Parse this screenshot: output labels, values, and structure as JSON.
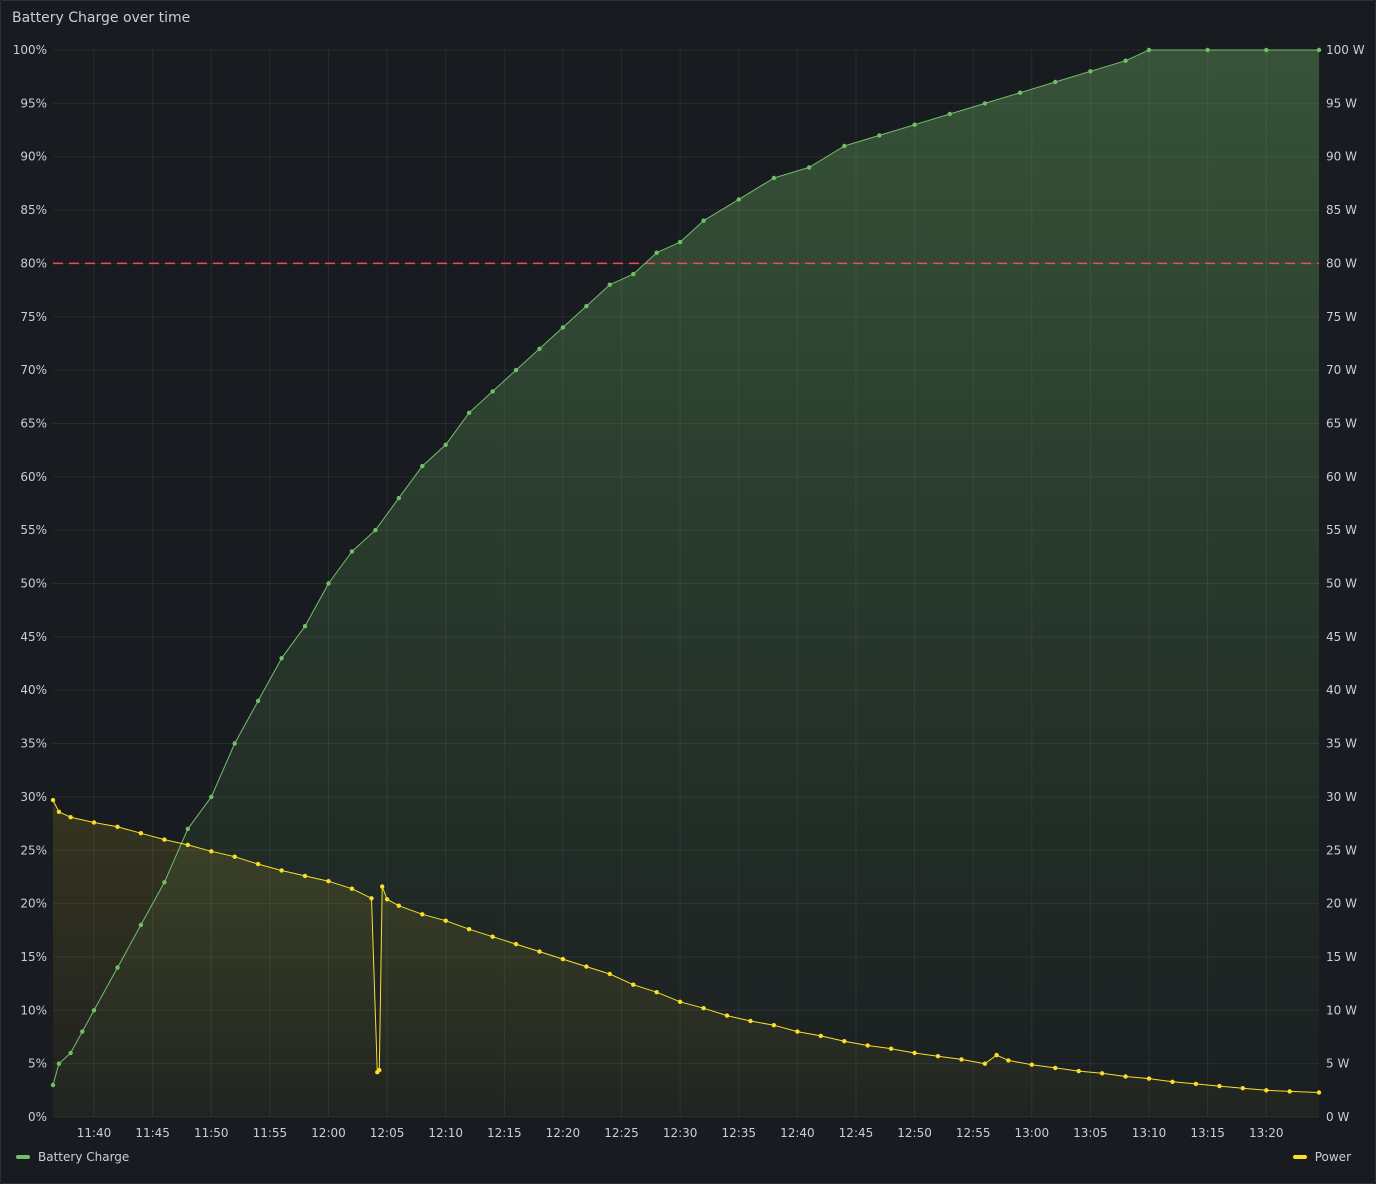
{
  "panel": {
    "title": "Battery Charge over time"
  },
  "legend": {
    "items": [
      {
        "label": "Battery Charge",
        "color": "#73bf69"
      },
      {
        "label": "Power",
        "color": "#fade2a"
      }
    ]
  },
  "chart_data": {
    "type": "line",
    "title": "Battery Charge over time",
    "x_start": "11:36:30",
    "x_end": "13:24:30",
    "x_tick_labels": [
      "11:40",
      "11:45",
      "11:50",
      "11:55",
      "12:00",
      "12:05",
      "12:10",
      "12:15",
      "12:20",
      "12:25",
      "12:30",
      "12:35",
      "12:40",
      "12:45",
      "12:50",
      "12:55",
      "13:00",
      "13:05",
      "13:10",
      "13:15",
      "13:20"
    ],
    "y_left": {
      "min": 0,
      "max": 100,
      "unit": "%",
      "tick_labels": [
        "0%",
        "5%",
        "10%",
        "15%",
        "20%",
        "25%",
        "30%",
        "35%",
        "40%",
        "45%",
        "50%",
        "55%",
        "60%",
        "65%",
        "70%",
        "75%",
        "80%",
        "85%",
        "90%",
        "95%",
        "100%"
      ]
    },
    "y_right": {
      "min": 0,
      "max": 100,
      "unit": "W",
      "tick_labels": [
        "0 W",
        "5 W",
        "10 W",
        "15 W",
        "20 W",
        "25 W",
        "30 W",
        "35 W",
        "40 W",
        "45 W",
        "50 W",
        "55 W",
        "60 W",
        "65 W",
        "70 W",
        "75 W",
        "80 W",
        "85 W",
        "90 W",
        "95 W",
        "100 W"
      ]
    },
    "grid": true,
    "threshold": {
      "value": 80,
      "color": "#f2495c",
      "style": "dashed"
    },
    "series": [
      {
        "name": "Battery Charge",
        "axis": "left",
        "color": "#73bf69",
        "points": [
          [
            "11:36:30",
            3
          ],
          [
            "11:37:00",
            5
          ],
          [
            "11:38:00",
            6
          ],
          [
            "11:39:00",
            8
          ],
          [
            "11:40:00",
            10
          ],
          [
            "11:42:00",
            14
          ],
          [
            "11:44:00",
            18
          ],
          [
            "11:46:00",
            22
          ],
          [
            "11:48:00",
            27
          ],
          [
            "11:50:00",
            30
          ],
          [
            "11:52:00",
            35
          ],
          [
            "11:54:00",
            39
          ],
          [
            "11:56:00",
            43
          ],
          [
            "11:58:00",
            46
          ],
          [
            "12:00:00",
            50
          ],
          [
            "12:02:00",
            53
          ],
          [
            "12:04:00",
            55
          ],
          [
            "12:06:00",
            58
          ],
          [
            "12:08:00",
            61
          ],
          [
            "12:10:00",
            63
          ],
          [
            "12:12:00",
            66
          ],
          [
            "12:14:00",
            68
          ],
          [
            "12:16:00",
            70
          ],
          [
            "12:18:00",
            72
          ],
          [
            "12:20:00",
            74
          ],
          [
            "12:22:00",
            76
          ],
          [
            "12:24:00",
            78
          ],
          [
            "12:26:00",
            79
          ],
          [
            "12:28:00",
            81
          ],
          [
            "12:30:00",
            82
          ],
          [
            "12:32:00",
            84
          ],
          [
            "12:35:00",
            86
          ],
          [
            "12:38:00",
            88
          ],
          [
            "12:41:00",
            89
          ],
          [
            "12:44:00",
            91
          ],
          [
            "12:47:00",
            92
          ],
          [
            "12:50:00",
            93
          ],
          [
            "12:53:00",
            94
          ],
          [
            "12:56:00",
            95
          ],
          [
            "12:59:00",
            96
          ],
          [
            "13:02:00",
            97
          ],
          [
            "13:05:00",
            98
          ],
          [
            "13:08:00",
            99
          ],
          [
            "13:10:00",
            100
          ],
          [
            "13:15:00",
            100
          ],
          [
            "13:20:00",
            100
          ],
          [
            "13:24:30",
            100
          ]
        ]
      },
      {
        "name": "Power",
        "axis": "right",
        "color": "#fade2a",
        "points": [
          [
            "11:36:30",
            29.7
          ],
          [
            "11:37:00",
            28.6
          ],
          [
            "11:38:00",
            28.1
          ],
          [
            "11:40:00",
            27.6
          ],
          [
            "11:42:00",
            27.2
          ],
          [
            "11:44:00",
            26.6
          ],
          [
            "11:46:00",
            26.0
          ],
          [
            "11:48:00",
            25.5
          ],
          [
            "11:50:00",
            24.9
          ],
          [
            "11:52:00",
            24.4
          ],
          [
            "11:54:00",
            23.7
          ],
          [
            "11:56:00",
            23.1
          ],
          [
            "11:58:00",
            22.6
          ],
          [
            "12:00:00",
            22.1
          ],
          [
            "12:02:00",
            21.4
          ],
          [
            "12:03:40",
            20.5
          ],
          [
            "12:04:10",
            4.2
          ],
          [
            "12:04:20",
            4.4
          ],
          [
            "12:04:35",
            21.6
          ],
          [
            "12:05:00",
            20.4
          ],
          [
            "12:06:00",
            19.8
          ],
          [
            "12:08:00",
            19.0
          ],
          [
            "12:10:00",
            18.4
          ],
          [
            "12:12:00",
            17.6
          ],
          [
            "12:14:00",
            16.9
          ],
          [
            "12:16:00",
            16.2
          ],
          [
            "12:18:00",
            15.5
          ],
          [
            "12:20:00",
            14.8
          ],
          [
            "12:22:00",
            14.1
          ],
          [
            "12:24:00",
            13.4
          ],
          [
            "12:26:00",
            12.4
          ],
          [
            "12:28:00",
            11.7
          ],
          [
            "12:30:00",
            10.8
          ],
          [
            "12:32:00",
            10.2
          ],
          [
            "12:34:00",
            9.5
          ],
          [
            "12:36:00",
            9.0
          ],
          [
            "12:38:00",
            8.6
          ],
          [
            "12:40:00",
            8.0
          ],
          [
            "12:42:00",
            7.6
          ],
          [
            "12:44:00",
            7.1
          ],
          [
            "12:46:00",
            6.7
          ],
          [
            "12:48:00",
            6.4
          ],
          [
            "12:50:00",
            6.0
          ],
          [
            "12:52:00",
            5.7
          ],
          [
            "12:54:00",
            5.4
          ],
          [
            "12:56:00",
            5.0
          ],
          [
            "12:57:00",
            5.8
          ],
          [
            "12:58:00",
            5.3
          ],
          [
            "13:00:00",
            4.9
          ],
          [
            "13:02:00",
            4.6
          ],
          [
            "13:04:00",
            4.3
          ],
          [
            "13:06:00",
            4.1
          ],
          [
            "13:08:00",
            3.8
          ],
          [
            "13:10:00",
            3.6
          ],
          [
            "13:12:00",
            3.3
          ],
          [
            "13:14:00",
            3.1
          ],
          [
            "13:16:00",
            2.9
          ],
          [
            "13:18:00",
            2.7
          ],
          [
            "13:20:00",
            2.5
          ],
          [
            "13:22:00",
            2.4
          ],
          [
            "13:24:30",
            2.3
          ]
        ]
      }
    ]
  }
}
